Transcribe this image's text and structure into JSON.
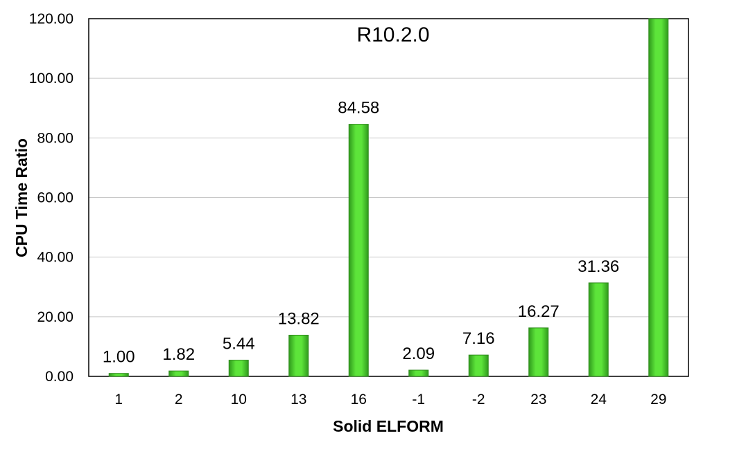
{
  "chart_data": {
    "type": "bar",
    "title": "R10.2.0",
    "xlabel": "Solid ELFORM",
    "ylabel": "CPU Time Ratio",
    "categories": [
      "1",
      "2",
      "10",
      "13",
      "16",
      "-1",
      "-2",
      "23",
      "24",
      "29"
    ],
    "values": [
      1.0,
      1.82,
      5.44,
      13.82,
      84.58,
      2.09,
      7.16,
      16.27,
      31.36,
      120.0
    ],
    "data_labels": [
      "1.00",
      "1.82",
      "5.44",
      "13.82",
      "84.58",
      "2.09",
      "7.16",
      "16.27",
      "31.36",
      ""
    ],
    "ylim": [
      0,
      120
    ],
    "yticks": [
      "0.00",
      "20.00",
      "40.00",
      "60.00",
      "80.00",
      "100.00",
      "120.00"
    ],
    "grid": true,
    "legend": "none",
    "bar_color": "#4fd62f",
    "bar_edge_color": "#2f8a1c"
  }
}
